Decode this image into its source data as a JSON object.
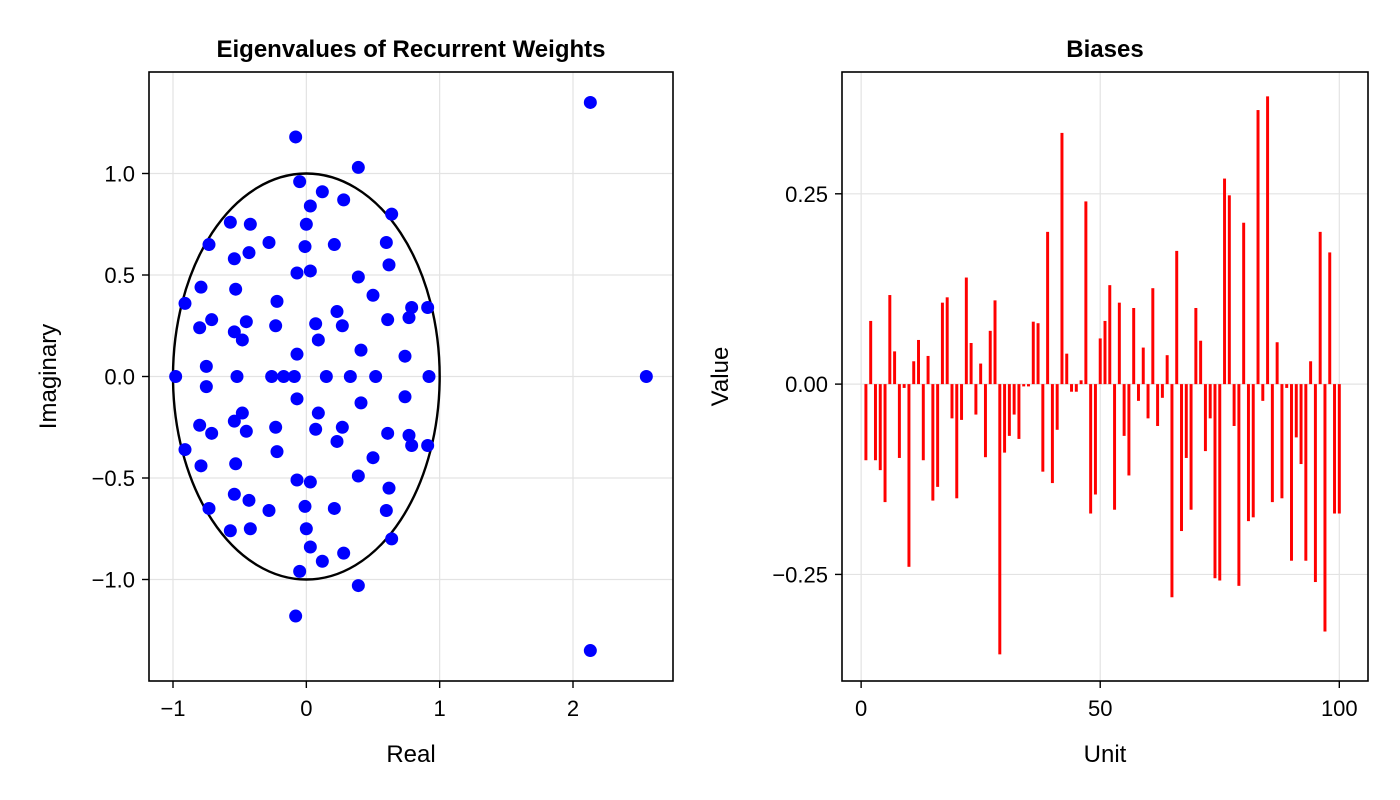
{
  "chart_data": [
    {
      "type": "scatter",
      "title": "Eigenvalues of Recurrent Weights",
      "xlabel": "Real",
      "ylabel": "Imaginary",
      "xlim": [
        -1.18,
        2.75
      ],
      "ylim": [
        -1.5,
        1.5
      ],
      "xticks": [
        -1,
        0,
        1,
        2
      ],
      "xtick_labels": [
        "−1",
        "0",
        "1",
        "2"
      ],
      "yticks": [
        -1.0,
        -0.5,
        0.0,
        0.5,
        1.0
      ],
      "ytick_labels": [
        "−1.0",
        "−0.5",
        "0.0",
        "0.5",
        "1.0"
      ],
      "grid": true,
      "legend": "none",
      "point_color": "#0000ff",
      "circle_color": "#000000",
      "unit_circle": {
        "center": [
          0,
          0
        ],
        "radius": 1
      },
      "points": [
        [
          -0.08,
          1.18
        ],
        [
          -0.08,
          -1.18
        ],
        [
          -0.98,
          0.0
        ],
        [
          2.55,
          0.0
        ],
        [
          2.13,
          1.35
        ],
        [
          2.13,
          -1.35
        ],
        [
          0.39,
          1.03
        ],
        [
          0.39,
          -1.03
        ],
        [
          -0.05,
          0.96
        ],
        [
          -0.05,
          -0.96
        ],
        [
          0.03,
          0.84
        ],
        [
          0.03,
          -0.84
        ],
        [
          0.12,
          0.91
        ],
        [
          0.12,
          -0.91
        ],
        [
          0.28,
          0.87
        ],
        [
          0.28,
          -0.87
        ],
        [
          0.64,
          0.8
        ],
        [
          0.64,
          -0.8
        ],
        [
          -0.57,
          0.76
        ],
        [
          -0.57,
          -0.76
        ],
        [
          -0.42,
          0.75
        ],
        [
          -0.42,
          -0.75
        ],
        [
          0.0,
          0.75
        ],
        [
          0.0,
          -0.75
        ],
        [
          -0.73,
          0.65
        ],
        [
          -0.73,
          -0.65
        ],
        [
          -0.28,
          0.66
        ],
        [
          -0.28,
          -0.66
        ],
        [
          -0.01,
          0.64
        ],
        [
          -0.01,
          -0.64
        ],
        [
          0.21,
          0.65
        ],
        [
          0.21,
          -0.65
        ],
        [
          0.6,
          0.66
        ],
        [
          0.6,
          -0.66
        ],
        [
          -0.43,
          0.61
        ],
        [
          -0.43,
          -0.61
        ],
        [
          -0.54,
          0.58
        ],
        [
          -0.54,
          -0.58
        ],
        [
          0.62,
          0.55
        ],
        [
          0.62,
          -0.55
        ],
        [
          -0.07,
          0.51
        ],
        [
          -0.07,
          -0.51
        ],
        [
          0.03,
          0.52
        ],
        [
          0.03,
          -0.52
        ],
        [
          0.39,
          0.49
        ],
        [
          0.39,
          -0.49
        ],
        [
          -0.79,
          0.44
        ],
        [
          -0.79,
          -0.44
        ],
        [
          -0.53,
          0.43
        ],
        [
          -0.53,
          -0.43
        ],
        [
          0.5,
          0.4
        ],
        [
          0.5,
          -0.4
        ],
        [
          -0.22,
          0.37
        ],
        [
          -0.22,
          -0.37
        ],
        [
          -0.91,
          0.36
        ],
        [
          -0.91,
          -0.36
        ],
        [
          0.79,
          0.34
        ],
        [
          0.79,
          -0.34
        ],
        [
          0.91,
          0.34
        ],
        [
          0.91,
          -0.34
        ],
        [
          0.23,
          0.32
        ],
        [
          0.23,
          -0.32
        ],
        [
          -0.71,
          0.28
        ],
        [
          -0.71,
          -0.28
        ],
        [
          0.61,
          0.28
        ],
        [
          0.61,
          -0.28
        ],
        [
          0.77,
          0.29
        ],
        [
          0.77,
          -0.29
        ],
        [
          -0.45,
          0.27
        ],
        [
          -0.45,
          -0.27
        ],
        [
          -0.23,
          0.25
        ],
        [
          -0.23,
          -0.25
        ],
        [
          0.07,
          0.26
        ],
        [
          0.07,
          -0.26
        ],
        [
          0.27,
          0.25
        ],
        [
          0.27,
          -0.25
        ],
        [
          -0.8,
          0.24
        ],
        [
          -0.8,
          -0.24
        ],
        [
          -0.54,
          0.22
        ],
        [
          -0.54,
          -0.22
        ],
        [
          -0.48,
          0.18
        ],
        [
          -0.48,
          -0.18
        ],
        [
          0.09,
          0.18
        ],
        [
          0.09,
          -0.18
        ],
        [
          0.41,
          0.13
        ],
        [
          0.41,
          -0.13
        ],
        [
          -0.07,
          0.11
        ],
        [
          -0.07,
          -0.11
        ],
        [
          0.74,
          0.1
        ],
        [
          0.74,
          -0.1
        ],
        [
          -0.75,
          0.05
        ],
        [
          -0.75,
          -0.05
        ],
        [
          -0.52,
          0.0
        ],
        [
          -0.26,
          0.0
        ],
        [
          -0.17,
          0.0
        ],
        [
          -0.09,
          0.0
        ],
        [
          0.15,
          0.0
        ],
        [
          0.33,
          0.0
        ],
        [
          0.52,
          0.0
        ],
        [
          0.92,
          0.0
        ]
      ]
    },
    {
      "type": "bar",
      "title": "Biases",
      "xlabel": "Unit",
      "ylabel": "Value",
      "xlim": [
        -4,
        106
      ],
      "ylim": [
        -0.39,
        0.41
      ],
      "xticks": [
        0,
        50,
        100
      ],
      "xtick_labels": [
        "0",
        "50",
        "100"
      ],
      "yticks": [
        -0.25,
        0.0,
        0.25
      ],
      "ytick_labels": [
        "−0.25",
        "0.00",
        "0.25"
      ],
      "grid": true,
      "legend": "none",
      "bar_color": "#ff0000",
      "x": [
        1,
        2,
        3,
        4,
        5,
        6,
        7,
        8,
        9,
        10,
        11,
        12,
        13,
        14,
        15,
        16,
        17,
        18,
        19,
        20,
        21,
        22,
        23,
        24,
        25,
        26,
        27,
        28,
        29,
        30,
        31,
        32,
        33,
        34,
        35,
        36,
        37,
        38,
        39,
        40,
        41,
        42,
        43,
        44,
        45,
        46,
        47,
        48,
        49,
        50,
        51,
        52,
        53,
        54,
        55,
        56,
        57,
        58,
        59,
        60,
        61,
        62,
        63,
        64,
        65,
        66,
        67,
        68,
        69,
        70,
        71,
        72,
        73,
        74,
        75,
        76,
        77,
        78,
        79,
        80,
        81,
        82,
        83,
        84,
        85,
        86,
        87,
        88,
        89,
        90,
        91,
        92,
        93,
        94,
        95,
        96,
        97,
        98,
        99,
        100
      ],
      "values": [
        -0.1,
        0.083,
        -0.1,
        -0.113,
        -0.155,
        0.117,
        0.043,
        -0.097,
        -0.005,
        -0.24,
        0.03,
        0.058,
        -0.1,
        0.037,
        -0.153,
        -0.135,
        0.107,
        0.114,
        -0.045,
        -0.15,
        -0.047,
        0.14,
        0.054,
        -0.04,
        0.027,
        -0.096,
        0.07,
        0.11,
        -0.355,
        -0.09,
        -0.068,
        -0.04,
        -0.072,
        -0.003,
        -0.003,
        0.082,
        0.08,
        -0.115,
        0.2,
        -0.13,
        -0.06,
        0.33,
        0.04,
        -0.01,
        -0.01,
        0.005,
        0.24,
        -0.17,
        -0.145,
        0.06,
        0.083,
        0.13,
        -0.165,
        0.107,
        -0.068,
        -0.12,
        0.1,
        -0.022,
        0.048,
        -0.045,
        0.126,
        -0.055,
        -0.018,
        0.038,
        -0.28,
        0.175,
        -0.193,
        -0.097,
        -0.165,
        0.1,
        0.057,
        -0.088,
        -0.045,
        -0.255,
        -0.258,
        0.27,
        0.248,
        -0.055,
        -0.265,
        0.212,
        -0.18,
        -0.175,
        0.36,
        -0.022,
        0.378,
        -0.155,
        0.055,
        -0.15,
        -0.005,
        -0.232,
        -0.07,
        -0.105,
        -0.232,
        0.03,
        -0.26,
        0.2,
        -0.325,
        0.173,
        -0.17,
        -0.17
      ]
    }
  ]
}
